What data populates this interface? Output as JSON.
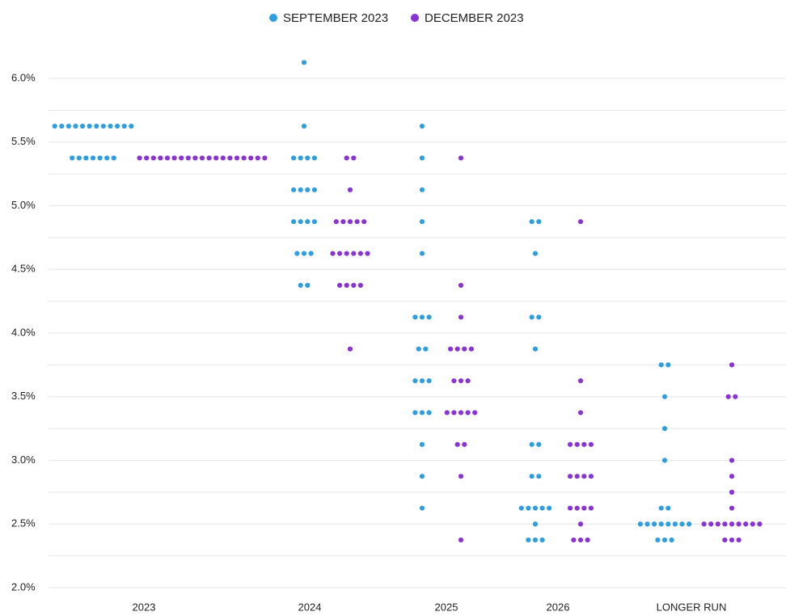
{
  "chart_data": {
    "type": "dot_plot",
    "categories": [
      "2023",
      "2024",
      "2025",
      "2026",
      "LONGER RUN"
    ],
    "ylim": [
      2.0,
      6.25
    ],
    "yticks": [
      {
        "value": 2.0,
        "label": "2.0%"
      },
      {
        "value": 2.5,
        "label": "2.5%"
      },
      {
        "value": 3.0,
        "label": "3.0%"
      },
      {
        "value": 3.5,
        "label": "3.5%"
      },
      {
        "value": 4.0,
        "label": "4.0%"
      },
      {
        "value": 4.5,
        "label": "4.5%"
      },
      {
        "value": 5.0,
        "label": "5.0%"
      },
      {
        "value": 5.5,
        "label": "5.5%"
      },
      {
        "value": 6.0,
        "label": "6.0%"
      }
    ],
    "minor_yticks": [
      2.25,
      2.75,
      3.25,
      3.75,
      4.25,
      4.75,
      5.25,
      5.75
    ],
    "grid": true,
    "legend": "top",
    "series": [
      {
        "name": "SEPTEMBER 2023",
        "color": "#2e9ee0",
        "values": [
          [
            5.625,
            5.625,
            5.625,
            5.625,
            5.625,
            5.625,
            5.625,
            5.625,
            5.625,
            5.625,
            5.625,
            5.625,
            5.375,
            5.375,
            5.375,
            5.375,
            5.375,
            5.375,
            5.375
          ],
          [
            6.125,
            5.625,
            5.375,
            5.375,
            5.375,
            5.375,
            5.125,
            5.125,
            5.125,
            5.125,
            4.875,
            4.875,
            4.875,
            4.875,
            4.625,
            4.625,
            4.625,
            4.375,
            4.375
          ],
          [
            5.625,
            5.375,
            5.125,
            4.875,
            4.625,
            4.125,
            4.125,
            4.125,
            3.875,
            3.875,
            3.625,
            3.625,
            3.625,
            3.375,
            3.375,
            3.375,
            3.125,
            2.875,
            2.625
          ],
          [
            4.875,
            4.875,
            4.625,
            4.125,
            4.125,
            3.875,
            3.125,
            3.125,
            2.875,
            2.875,
            2.625,
            2.625,
            2.625,
            2.625,
            2.625,
            2.5,
            2.375,
            2.375,
            2.375
          ],
          [
            3.75,
            3.75,
            3.5,
            3.25,
            3.0,
            2.625,
            2.625,
            2.5,
            2.5,
            2.5,
            2.5,
            2.5,
            2.5,
            2.5,
            2.5,
            2.375,
            2.375,
            2.375
          ]
        ]
      },
      {
        "name": "DECEMBER 2023",
        "color": "#8a33d4",
        "values": [
          [
            5.375,
            5.375,
            5.375,
            5.375,
            5.375,
            5.375,
            5.375,
            5.375,
            5.375,
            5.375,
            5.375,
            5.375,
            5.375,
            5.375,
            5.375,
            5.375,
            5.375,
            5.375,
            5.375
          ],
          [
            5.375,
            5.375,
            5.125,
            4.875,
            4.875,
            4.875,
            4.875,
            4.875,
            4.625,
            4.625,
            4.625,
            4.625,
            4.625,
            4.625,
            4.375,
            4.375,
            4.375,
            4.375,
            3.875
          ],
          [
            5.375,
            4.375,
            4.125,
            3.875,
            3.875,
            3.875,
            3.875,
            3.625,
            3.625,
            3.625,
            3.375,
            3.375,
            3.375,
            3.375,
            3.375,
            3.125,
            3.125,
            2.875,
            2.375
          ],
          [
            4.875,
            3.625,
            3.375,
            3.125,
            3.125,
            3.125,
            3.125,
            2.875,
            2.875,
            2.875,
            2.875,
            2.625,
            2.625,
            2.625,
            2.625,
            2.5,
            2.375,
            2.375,
            2.375
          ],
          [
            3.75,
            3.5,
            3.5,
            3.0,
            2.875,
            2.75,
            2.625,
            2.5,
            2.5,
            2.5,
            2.5,
            2.5,
            2.5,
            2.5,
            2.5,
            2.5,
            2.375,
            2.375,
            2.375
          ]
        ]
      }
    ]
  }
}
